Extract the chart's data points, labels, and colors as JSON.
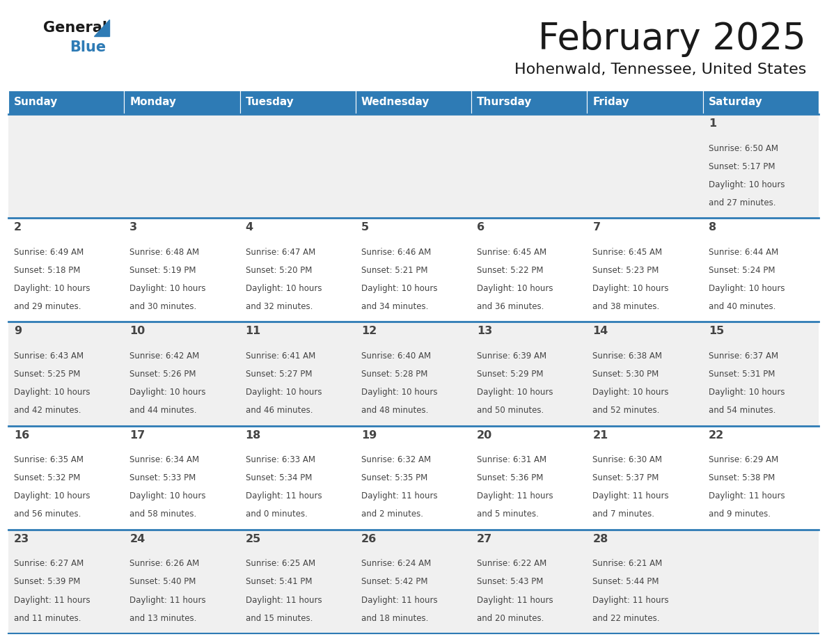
{
  "title": "February 2025",
  "subtitle": "Hohenwald, Tennessee, United States",
  "header_color": "#2E7BB5",
  "header_text_color": "#FFFFFF",
  "grid_line_color": "#2E7BB5",
  "day_names": [
    "Sunday",
    "Monday",
    "Tuesday",
    "Wednesday",
    "Thursday",
    "Friday",
    "Saturday"
  ],
  "background_color": "#FFFFFF",
  "cell_bg_row0": "#F0F0F0",
  "cell_bg_row1": "#FFFFFF",
  "cell_bg_row2": "#F0F0F0",
  "cell_bg_row3": "#FFFFFF",
  "cell_bg_row4": "#F0F0F0",
  "text_color": "#444444",
  "logo_color1": "#1A1A1A",
  "logo_color2": "#2E7BB5",
  "logo_tri_color": "#2E7BB5",
  "days": [
    {
      "day": 1,
      "row": 0,
      "col": 6,
      "sunrise": "6:50 AM",
      "sunset": "5:17 PM",
      "daylight_h": "10 hours",
      "daylight_m": "and 27 minutes."
    },
    {
      "day": 2,
      "row": 1,
      "col": 0,
      "sunrise": "6:49 AM",
      "sunset": "5:18 PM",
      "daylight_h": "10 hours",
      "daylight_m": "and 29 minutes."
    },
    {
      "day": 3,
      "row": 1,
      "col": 1,
      "sunrise": "6:48 AM",
      "sunset": "5:19 PM",
      "daylight_h": "10 hours",
      "daylight_m": "and 30 minutes."
    },
    {
      "day": 4,
      "row": 1,
      "col": 2,
      "sunrise": "6:47 AM",
      "sunset": "5:20 PM",
      "daylight_h": "10 hours",
      "daylight_m": "and 32 minutes."
    },
    {
      "day": 5,
      "row": 1,
      "col": 3,
      "sunrise": "6:46 AM",
      "sunset": "5:21 PM",
      "daylight_h": "10 hours",
      "daylight_m": "and 34 minutes."
    },
    {
      "day": 6,
      "row": 1,
      "col": 4,
      "sunrise": "6:45 AM",
      "sunset": "5:22 PM",
      "daylight_h": "10 hours",
      "daylight_m": "and 36 minutes."
    },
    {
      "day": 7,
      "row": 1,
      "col": 5,
      "sunrise": "6:45 AM",
      "sunset": "5:23 PM",
      "daylight_h": "10 hours",
      "daylight_m": "and 38 minutes."
    },
    {
      "day": 8,
      "row": 1,
      "col": 6,
      "sunrise": "6:44 AM",
      "sunset": "5:24 PM",
      "daylight_h": "10 hours",
      "daylight_m": "and 40 minutes."
    },
    {
      "day": 9,
      "row": 2,
      "col": 0,
      "sunrise": "6:43 AM",
      "sunset": "5:25 PM",
      "daylight_h": "10 hours",
      "daylight_m": "and 42 minutes."
    },
    {
      "day": 10,
      "row": 2,
      "col": 1,
      "sunrise": "6:42 AM",
      "sunset": "5:26 PM",
      "daylight_h": "10 hours",
      "daylight_m": "and 44 minutes."
    },
    {
      "day": 11,
      "row": 2,
      "col": 2,
      "sunrise": "6:41 AM",
      "sunset": "5:27 PM",
      "daylight_h": "10 hours",
      "daylight_m": "and 46 minutes."
    },
    {
      "day": 12,
      "row": 2,
      "col": 3,
      "sunrise": "6:40 AM",
      "sunset": "5:28 PM",
      "daylight_h": "10 hours",
      "daylight_m": "and 48 minutes."
    },
    {
      "day": 13,
      "row": 2,
      "col": 4,
      "sunrise": "6:39 AM",
      "sunset": "5:29 PM",
      "daylight_h": "10 hours",
      "daylight_m": "and 50 minutes."
    },
    {
      "day": 14,
      "row": 2,
      "col": 5,
      "sunrise": "6:38 AM",
      "sunset": "5:30 PM",
      "daylight_h": "10 hours",
      "daylight_m": "and 52 minutes."
    },
    {
      "day": 15,
      "row": 2,
      "col": 6,
      "sunrise": "6:37 AM",
      "sunset": "5:31 PM",
      "daylight_h": "10 hours",
      "daylight_m": "and 54 minutes."
    },
    {
      "day": 16,
      "row": 3,
      "col": 0,
      "sunrise": "6:35 AM",
      "sunset": "5:32 PM",
      "daylight_h": "10 hours",
      "daylight_m": "and 56 minutes."
    },
    {
      "day": 17,
      "row": 3,
      "col": 1,
      "sunrise": "6:34 AM",
      "sunset": "5:33 PM",
      "daylight_h": "10 hours",
      "daylight_m": "and 58 minutes."
    },
    {
      "day": 18,
      "row": 3,
      "col": 2,
      "sunrise": "6:33 AM",
      "sunset": "5:34 PM",
      "daylight_h": "11 hours",
      "daylight_m": "and 0 minutes."
    },
    {
      "day": 19,
      "row": 3,
      "col": 3,
      "sunrise": "6:32 AM",
      "sunset": "5:35 PM",
      "daylight_h": "11 hours",
      "daylight_m": "and 2 minutes."
    },
    {
      "day": 20,
      "row": 3,
      "col": 4,
      "sunrise": "6:31 AM",
      "sunset": "5:36 PM",
      "daylight_h": "11 hours",
      "daylight_m": "and 5 minutes."
    },
    {
      "day": 21,
      "row": 3,
      "col": 5,
      "sunrise": "6:30 AM",
      "sunset": "5:37 PM",
      "daylight_h": "11 hours",
      "daylight_m": "and 7 minutes."
    },
    {
      "day": 22,
      "row": 3,
      "col": 6,
      "sunrise": "6:29 AM",
      "sunset": "5:38 PM",
      "daylight_h": "11 hours",
      "daylight_m": "and 9 minutes."
    },
    {
      "day": 23,
      "row": 4,
      "col": 0,
      "sunrise": "6:27 AM",
      "sunset": "5:39 PM",
      "daylight_h": "11 hours",
      "daylight_m": "and 11 minutes."
    },
    {
      "day": 24,
      "row": 4,
      "col": 1,
      "sunrise": "6:26 AM",
      "sunset": "5:40 PM",
      "daylight_h": "11 hours",
      "daylight_m": "and 13 minutes."
    },
    {
      "day": 25,
      "row": 4,
      "col": 2,
      "sunrise": "6:25 AM",
      "sunset": "5:41 PM",
      "daylight_h": "11 hours",
      "daylight_m": "and 15 minutes."
    },
    {
      "day": 26,
      "row": 4,
      "col": 3,
      "sunrise": "6:24 AM",
      "sunset": "5:42 PM",
      "daylight_h": "11 hours",
      "daylight_m": "and 18 minutes."
    },
    {
      "day": 27,
      "row": 4,
      "col": 4,
      "sunrise": "6:22 AM",
      "sunset": "5:43 PM",
      "daylight_h": "11 hours",
      "daylight_m": "and 20 minutes."
    },
    {
      "day": 28,
      "row": 4,
      "col": 5,
      "sunrise": "6:21 AM",
      "sunset": "5:44 PM",
      "daylight_h": "11 hours",
      "daylight_m": "and 22 minutes."
    }
  ]
}
